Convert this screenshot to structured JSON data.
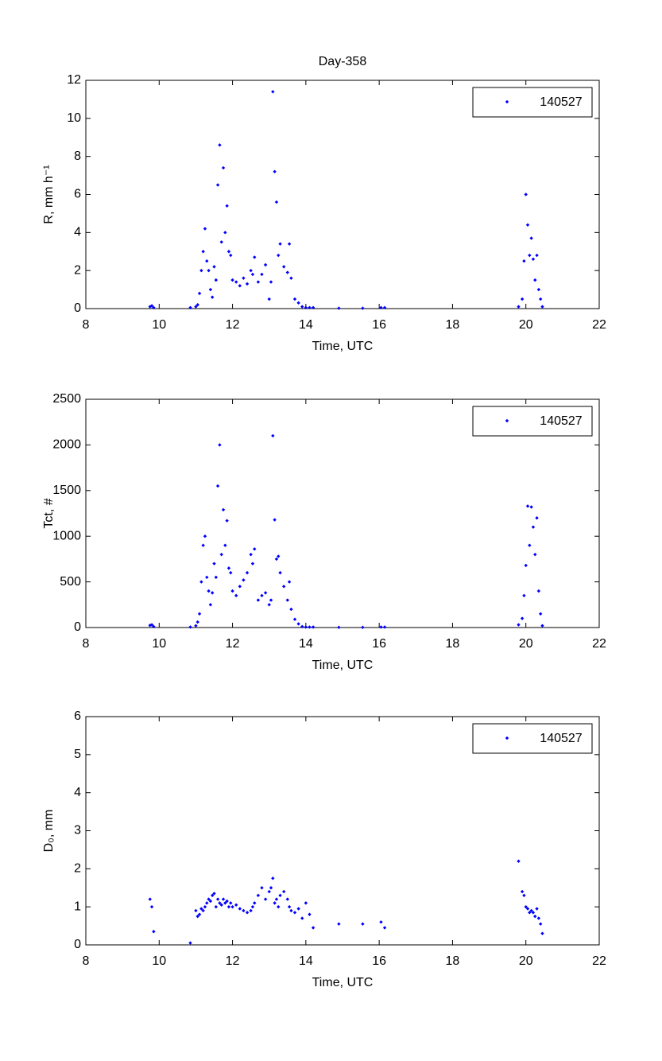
{
  "chart_data": [
    {
      "type": "scatter",
      "title": "Day-358",
      "xlabel": "Time, UTC",
      "ylabel": "R, mm h⁻¹",
      "x": [
        9.75,
        9.8,
        9.85,
        10.85,
        11.0,
        11.05,
        11.1,
        11.15,
        11.2,
        11.25,
        11.3,
        11.35,
        11.4,
        11.45,
        11.5,
        11.55,
        11.6,
        11.65,
        11.7,
        11.75,
        11.8,
        11.85,
        11.9,
        11.95,
        12.0,
        12.1,
        12.2,
        12.3,
        12.4,
        12.5,
        12.55,
        12.6,
        12.7,
        12.8,
        12.9,
        13.0,
        13.05,
        13.1,
        13.15,
        13.2,
        13.25,
        13.3,
        13.4,
        13.5,
        13.55,
        13.6,
        13.7,
        13.8,
        13.9,
        14.0,
        14.1,
        14.2,
        14.9,
        15.55,
        16.05,
        16.15,
        19.8,
        19.9,
        19.95,
        20.0,
        20.05,
        20.1,
        20.15,
        20.2,
        20.25,
        20.3,
        20.35,
        20.4,
        20.45
      ],
      "series": [
        {
          "name": "140527",
          "color": "#0000ff",
          "values": [
            0.1,
            0.15,
            0.05,
            0.05,
            0.1,
            0.2,
            0.8,
            2.0,
            3.0,
            4.2,
            2.5,
            2.0,
            1.0,
            0.6,
            2.2,
            1.5,
            6.5,
            8.6,
            3.5,
            7.4,
            4.0,
            5.4,
            3.0,
            2.8,
            1.5,
            1.4,
            1.2,
            1.6,
            1.3,
            2.0,
            1.8,
            2.7,
            1.4,
            1.8,
            2.3,
            0.5,
            1.4,
            11.4,
            7.2,
            5.6,
            2.8,
            3.4,
            2.2,
            1.9,
            3.4,
            1.6,
            0.5,
            0.3,
            0.1,
            0.05,
            0.05,
            0.05,
            0.02,
            0.02,
            0.05,
            0.05,
            0.1,
            0.5,
            2.5,
            6.0,
            4.4,
            2.8,
            3.7,
            2.6,
            1.5,
            2.8,
            1.0,
            0.5,
            0.1
          ]
        }
      ],
      "xlim": [
        8,
        22
      ],
      "xticks": [
        8,
        10,
        12,
        14,
        16,
        18,
        20,
        22
      ],
      "ylim": [
        0,
        12
      ],
      "yticks": [
        0,
        2,
        4,
        6,
        8,
        10,
        12
      ],
      "legend": "upper right"
    },
    {
      "type": "scatter",
      "xlabel": "Time, UTC",
      "ylabel": "Tct, #",
      "x": [
        9.75,
        9.8,
        9.85,
        10.85,
        11.0,
        11.05,
        11.1,
        11.15,
        11.2,
        11.25,
        11.3,
        11.35,
        11.4,
        11.45,
        11.5,
        11.55,
        11.6,
        11.65,
        11.7,
        11.75,
        11.8,
        11.85,
        11.9,
        11.95,
        12.0,
        12.1,
        12.2,
        12.3,
        12.4,
        12.5,
        12.55,
        12.6,
        12.7,
        12.8,
        12.9,
        13.0,
        13.05,
        13.1,
        13.15,
        13.2,
        13.25,
        13.3,
        13.4,
        13.5,
        13.55,
        13.6,
        13.7,
        13.8,
        13.9,
        14.0,
        14.1,
        14.2,
        14.9,
        15.55,
        16.05,
        16.15,
        19.8,
        19.9,
        19.95,
        20.0,
        20.05,
        20.1,
        20.15,
        20.2,
        20.25,
        20.3,
        20.35,
        20.4,
        20.45
      ],
      "series": [
        {
          "name": "140527",
          "color": "#0000ff",
          "values": [
            24,
            30,
            10,
            5,
            20,
            60,
            150,
            500,
            900,
            1000,
            550,
            400,
            250,
            380,
            700,
            550,
            1550,
            2000,
            800,
            1290,
            900,
            1170,
            650,
            600,
            400,
            350,
            450,
            520,
            600,
            800,
            700,
            860,
            300,
            350,
            380,
            250,
            300,
            2100,
            1180,
            750,
            780,
            600,
            450,
            300,
            500,
            200,
            90,
            40,
            10,
            5,
            5,
            5,
            2,
            2,
            5,
            5,
            30,
            100,
            350,
            680,
            1330,
            900,
            1320,
            1100,
            800,
            1200,
            400,
            150,
            20
          ]
        }
      ],
      "xlim": [
        8,
        22
      ],
      "xticks": [
        8,
        10,
        12,
        14,
        16,
        18,
        20,
        22
      ],
      "ylim": [
        0,
        2500
      ],
      "yticks": [
        0,
        500,
        1000,
        1500,
        2000,
        2500
      ],
      "legend": "upper right"
    },
    {
      "type": "scatter",
      "xlabel": "Time, UTC",
      "ylabel": "D₀, mm",
      "x": [
        9.75,
        9.8,
        9.85,
        10.85,
        11.0,
        11.05,
        11.1,
        11.15,
        11.2,
        11.25,
        11.3,
        11.35,
        11.4,
        11.45,
        11.5,
        11.55,
        11.6,
        11.65,
        11.7,
        11.75,
        11.8,
        11.85,
        11.9,
        11.95,
        12.0,
        12.1,
        12.2,
        12.3,
        12.4,
        12.5,
        12.55,
        12.6,
        12.7,
        12.8,
        12.9,
        13.0,
        13.05,
        13.1,
        13.15,
        13.2,
        13.25,
        13.3,
        13.4,
        13.5,
        13.55,
        13.6,
        13.7,
        13.8,
        13.9,
        14.0,
        14.1,
        14.2,
        14.9,
        15.55,
        16.05,
        16.15,
        19.8,
        19.9,
        19.95,
        20.0,
        20.05,
        20.1,
        20.15,
        20.2,
        20.25,
        20.3,
        20.35,
        20.4,
        20.45
      ],
      "series": [
        {
          "name": "140527",
          "color": "#0000ff",
          "values": [
            1.2,
            1.0,
            0.35,
            0.05,
            0.9,
            0.75,
            0.8,
            0.95,
            0.9,
            1.0,
            1.1,
            1.2,
            1.15,
            1.3,
            1.35,
            1.0,
            1.2,
            1.1,
            1.05,
            1.2,
            1.1,
            1.15,
            1.0,
            1.1,
            1.0,
            1.05,
            0.95,
            0.9,
            0.85,
            0.9,
            1.0,
            1.1,
            1.3,
            1.5,
            1.2,
            1.4,
            1.5,
            1.75,
            1.1,
            1.2,
            1.0,
            1.3,
            1.4,
            1.2,
            1.0,
            0.9,
            0.85,
            0.95,
            0.7,
            1.1,
            0.8,
            0.45,
            0.55,
            0.55,
            0.6,
            0.45,
            2.2,
            1.4,
            1.3,
            1.0,
            0.95,
            0.85,
            0.9,
            0.85,
            0.75,
            0.95,
            0.7,
            0.55,
            0.3
          ]
        }
      ],
      "xlim": [
        8,
        22
      ],
      "xticks": [
        8,
        10,
        12,
        14,
        16,
        18,
        20,
        22
      ],
      "ylim": [
        0,
        6
      ],
      "yticks": [
        0,
        1,
        2,
        3,
        4,
        5,
        6
      ],
      "legend": "upper right"
    }
  ]
}
